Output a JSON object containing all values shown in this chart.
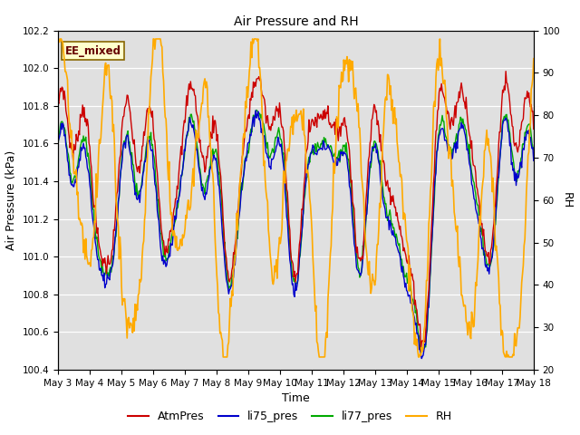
{
  "title": "Air Pressure and RH",
  "xlabel": "Time",
  "ylabel_left": "Air Pressure (kPa)",
  "ylabel_right": "RH",
  "annotation": "EE_mixed",
  "ylim_left": [
    100.4,
    102.2
  ],
  "ylim_right": [
    20,
    100
  ],
  "yticks_left": [
    100.4,
    100.6,
    100.8,
    101.0,
    101.2,
    101.4,
    101.6,
    101.8,
    102.0,
    102.2
  ],
  "yticks_right": [
    20,
    30,
    40,
    50,
    60,
    70,
    80,
    90,
    100
  ],
  "xtick_labels": [
    "May 3",
    "May 4",
    "May 5",
    "May 6",
    "May 7",
    "May 8",
    "May 9",
    "May 10",
    "May 11",
    "May 12",
    "May 13",
    "May 14",
    "May 15",
    "May 16",
    "May 17",
    "May 18"
  ],
  "colors": {
    "AtmPres": "#cc0000",
    "li75_pres": "#0000cc",
    "li77_pres": "#00aa00",
    "RH": "#ffaa00"
  },
  "background_color": "#ffffff",
  "plot_bg_color": "#e0e0e0",
  "grid_color": "#ffffff",
  "legend_items": [
    "AtmPres",
    "li75_pres",
    "li77_pres",
    "RH"
  ],
  "n_points": 600
}
